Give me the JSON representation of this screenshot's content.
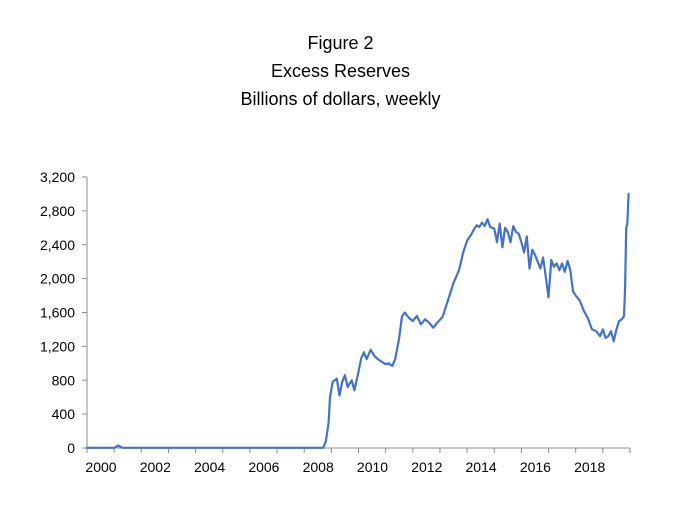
{
  "header": {
    "title": "Figure 2",
    "subtitle": "Excess Reserves",
    "units": "Billions of dollars, weekly"
  },
  "chart_data": {
    "type": "line",
    "title": "Figure 2",
    "subtitle": "Excess Reserves",
    "ylabel": "Billions of dollars, weekly",
    "xlabel": "",
    "xlim": [
      2000,
      2020
    ],
    "ylim": [
      0,
      3200
    ],
    "x_ticks": [
      "2000",
      "2002",
      "2004",
      "2006",
      "2008",
      "2010",
      "2012",
      "2014",
      "2016",
      "2018"
    ],
    "y_ticks": [
      "0",
      "400",
      "800",
      "1,200",
      "1,600",
      "2,000",
      "2,400",
      "2,800",
      "3,200"
    ],
    "grid": false,
    "legend": "none",
    "line_color": "#4472C4",
    "series": [
      {
        "x": [
          2000.0,
          2001.0,
          2001.15,
          2001.3,
          2002.0,
          2004.0,
          2006.0,
          2008.0,
          2008.7,
          2008.8,
          2008.9,
          2008.95,
          2009.05,
          2009.2,
          2009.3,
          2009.4,
          2009.5,
          2009.6,
          2009.75,
          2009.85,
          2010.0,
          2010.1,
          2010.2,
          2010.3,
          2010.45,
          2010.6,
          2010.75,
          2010.9,
          2011.0,
          2011.1,
          2011.25,
          2011.35,
          2011.5,
          2011.6,
          2011.7,
          2011.85,
          2012.0,
          2012.15,
          2012.3,
          2012.45,
          2012.6,
          2012.75,
          2012.9,
          2013.1,
          2013.3,
          2013.5,
          2013.7,
          2013.85,
          2014.0,
          2014.15,
          2014.25,
          2014.35,
          2014.45,
          2014.55,
          2014.65,
          2014.75,
          2014.85,
          2015.0,
          2015.1,
          2015.2,
          2015.3,
          2015.4,
          2015.5,
          2015.6,
          2015.7,
          2015.8,
          2015.9,
          2016.0,
          2016.1,
          2016.2,
          2016.3,
          2016.4,
          2016.5,
          2016.6,
          2016.7,
          2016.8,
          2016.9,
          2017.0,
          2017.1,
          2017.2,
          2017.3,
          2017.4,
          2017.5,
          2017.6,
          2017.7,
          2017.8,
          2017.9,
          2018.0,
          2018.15,
          2018.3,
          2018.45,
          2018.6,
          2018.75,
          2018.9,
          2019.0,
          2019.1,
          2019.2,
          2019.3,
          2019.4,
          2019.5,
          2019.6,
          2019.7,
          2019.78,
          2019.82,
          2019.86,
          2019.9,
          2019.95
        ],
        "values": [
          2,
          2,
          30,
          2,
          2,
          2,
          2,
          2,
          2,
          80,
          300,
          600,
          780,
          820,
          620,
          780,
          860,
          720,
          800,
          680,
          900,
          1060,
          1130,
          1050,
          1160,
          1080,
          1040,
          1010,
          990,
          1000,
          970,
          1050,
          1300,
          1550,
          1600,
          1540,
          1500,
          1560,
          1460,
          1520,
          1480,
          1420,
          1480,
          1550,
          1750,
          1950,
          2100,
          2300,
          2450,
          2520,
          2580,
          2630,
          2610,
          2660,
          2620,
          2700,
          2610,
          2590,
          2430,
          2650,
          2370,
          2600,
          2550,
          2430,
          2620,
          2550,
          2530,
          2430,
          2310,
          2500,
          2120,
          2340,
          2280,
          2200,
          2120,
          2250,
          2020,
          1780,
          2220,
          2140,
          2180,
          2100,
          2180,
          2080,
          2210,
          2100,
          1850,
          1800,
          1740,
          1620,
          1530,
          1400,
          1380,
          1320,
          1400,
          1300,
          1320,
          1380,
          1260,
          1400,
          1500,
          1520,
          1560,
          1890,
          2600,
          2640,
          3000
        ]
      }
    ]
  }
}
